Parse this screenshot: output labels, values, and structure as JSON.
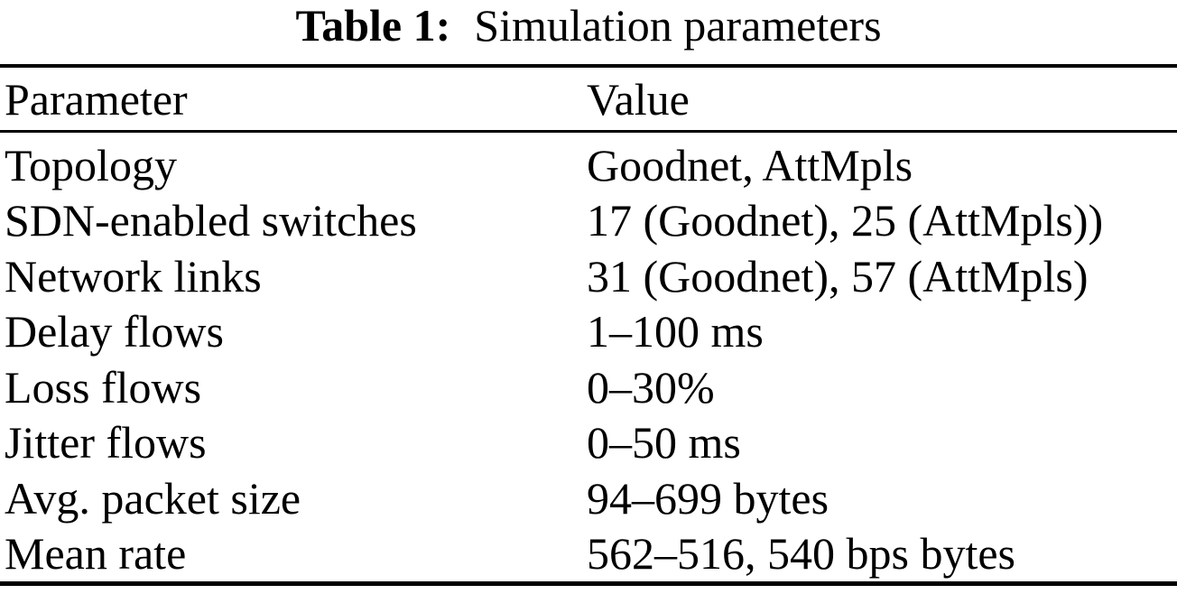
{
  "caption": {
    "label": "Table 1:",
    "title": "Simulation parameters"
  },
  "table": {
    "headers": {
      "parameter": "Parameter",
      "value": "Value"
    },
    "rows": [
      {
        "parameter": "Topology",
        "value": "Goodnet, AttMpls"
      },
      {
        "parameter": "SDN-enabled switches",
        "value": "17 (Goodnet), 25 (AttMpls))"
      },
      {
        "parameter": "Network links",
        "value": "31 (Goodnet), 57 (AttMpls)"
      },
      {
        "parameter": "Delay flows",
        "value": "1–100 ms"
      },
      {
        "parameter": "Loss flows",
        "value": "0–30%"
      },
      {
        "parameter": "Jitter flows",
        "value": "0–50 ms"
      },
      {
        "parameter": "Avg. packet size",
        "value": "94–699 bytes"
      },
      {
        "parameter": "Mean rate",
        "value": "562–516, 540 bps bytes"
      }
    ]
  },
  "colors": {
    "background": "#ffffff",
    "text": "#000000",
    "rule": "#000000"
  }
}
